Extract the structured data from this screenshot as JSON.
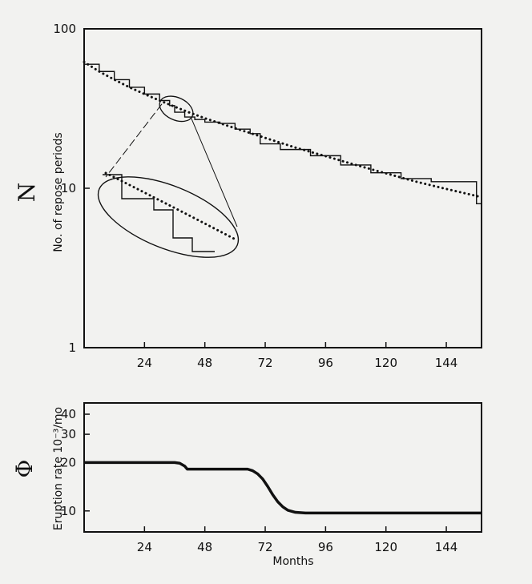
{
  "chart_data": [
    {
      "type": "line",
      "symbol": "N",
      "ylabel": "No. of repose periods",
      "yscale": "log",
      "xlim": [
        0,
        158
      ],
      "ylim": [
        1,
        100
      ],
      "xticks": [
        24,
        48,
        72,
        96,
        120,
        144
      ],
      "xtick_labels": [
        "24",
        "48",
        "72",
        "96",
        "120",
        "144"
      ],
      "yticks": [
        1,
        10,
        100
      ],
      "ytick_labels": [
        "1",
        "10",
        "100"
      ],
      "grid": false,
      "series": [
        {
          "style": "dotted",
          "x": [
            0,
            6,
            12,
            18,
            24,
            30,
            36,
            42,
            48,
            54,
            60,
            66,
            72,
            84,
            96,
            108,
            120,
            132,
            144,
            158
          ],
          "y": [
            62,
            54,
            48,
            43,
            39,
            35.5,
            32.5,
            29.8,
            27.5,
            25.6,
            23.8,
            22.2,
            20.7,
            18,
            15.9,
            14,
            12.4,
            11,
            9.9,
            8.8
          ]
        },
        {
          "style": "step",
          "x": [
            0,
            6,
            12,
            18,
            24,
            30,
            34,
            36,
            40,
            44,
            48,
            54,
            60,
            66,
            70,
            78,
            90,
            102,
            114,
            126,
            138,
            150,
            156,
            158
          ],
          "y": [
            60,
            54,
            48,
            43,
            39,
            35.5,
            33,
            30,
            28,
            27,
            26,
            25.5,
            23.5,
            22,
            19,
            17.5,
            16,
            14,
            12.5,
            11.5,
            11,
            11,
            8,
            8
          ]
        }
      ],
      "inset": {
        "note": "magnified view of the circled region near x = 36",
        "center": [
          36,
          33
        ]
      }
    },
    {
      "type": "line",
      "symbol": "Φ",
      "xlabel": "Months",
      "ylabel": "Eruption rate 10⁻³/mo",
      "yscale": "log",
      "xlim": [
        0,
        158
      ],
      "ylim": [
        7.4,
        47
      ],
      "xticks": [
        24,
        48,
        72,
        96,
        120,
        144
      ],
      "xtick_labels": [
        "24",
        "48",
        "72",
        "96",
        "120",
        "144"
      ],
      "yticks": [
        10,
        20,
        30,
        40
      ],
      "ytick_labels": [
        "10",
        "20",
        "30",
        "40"
      ],
      "grid": false,
      "series": [
        {
          "style": "solid-thick",
          "x": [
            0,
            36,
            38,
            40,
            41,
            65,
            67,
            69,
            71,
            73,
            75,
            77,
            79,
            81,
            84,
            88,
            100,
            120,
            140,
            158
          ],
          "y": [
            20,
            20,
            19.8,
            19,
            18.2,
            18.2,
            17.8,
            17,
            15.8,
            14.2,
            12.6,
            11.4,
            10.6,
            10.1,
            9.8,
            9.7,
            9.7,
            9.7,
            9.7,
            9.7
          ]
        }
      ]
    }
  ]
}
